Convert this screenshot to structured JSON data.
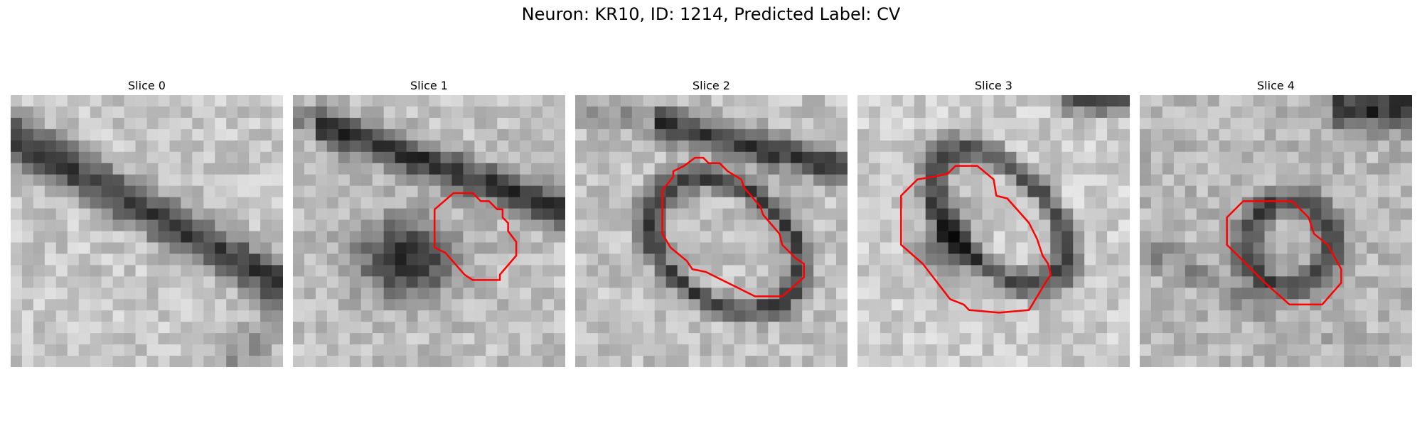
{
  "figure": {
    "title": "Neuron: KR10, ID: 1214, Predicted Label: CV"
  },
  "panels": [
    {
      "title": "Slice 0",
      "pattern": "diagonal-membrane",
      "contour": false
    },
    {
      "title": "Slice 1",
      "pattern": "dark-blob",
      "contour": true
    },
    {
      "title": "Slice 2",
      "pattern": "ring",
      "contour": true
    },
    {
      "title": "Slice 3",
      "pattern": "tilted-ring",
      "contour": true
    },
    {
      "title": "Slice 4",
      "pattern": "small-ring",
      "contour": true
    }
  ],
  "colors": {
    "contour": "#ff0000",
    "background": "#ffffff"
  }
}
